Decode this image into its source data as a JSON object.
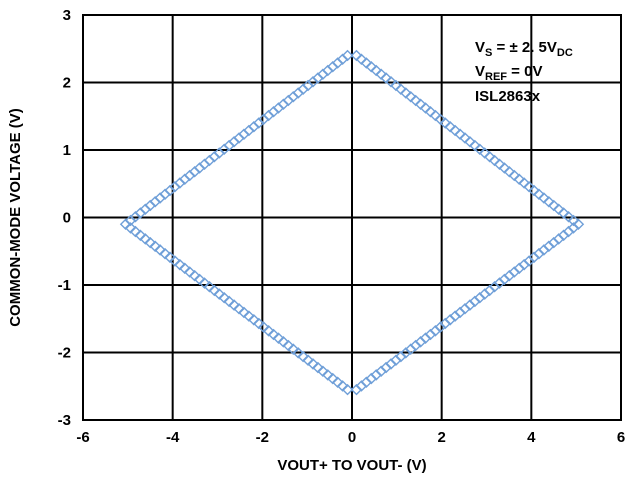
{
  "chart_data": {
    "type": "scatter",
    "xlabel": "VOUT+ TO VOUT- (V)",
    "ylabel": "COMMON-MODE VOLTAGE (V)",
    "xlim": [
      -6,
      6
    ],
    "ylim": [
      -3,
      3
    ],
    "xticks": [
      -6,
      -4,
      -2,
      0,
      2,
      4,
      6
    ],
    "yticks": [
      -3,
      -2,
      -1,
      0,
      1,
      2,
      3
    ],
    "grid": true,
    "marker": "diamond-open",
    "marker_color": "#6f9fd8",
    "vertices": [
      {
        "x": -0.1,
        "y": 2.4
      },
      {
        "x": 0.1,
        "y": 2.4
      },
      {
        "x": 5.05,
        "y": -0.1
      },
      {
        "x": 0.1,
        "y": -2.55
      },
      {
        "x": -0.1,
        "y": -2.55
      },
      {
        "x": -5.05,
        "y": -0.1
      }
    ],
    "annotation": {
      "line1": {
        "prefix": "V",
        "sub": "S",
        "middle": " = ± 2. 5V",
        "sub2": "DC"
      },
      "line2": {
        "prefix": "V",
        "sub": "REF",
        "middle": " = 0V"
      },
      "line3": "ISL2863x"
    }
  }
}
